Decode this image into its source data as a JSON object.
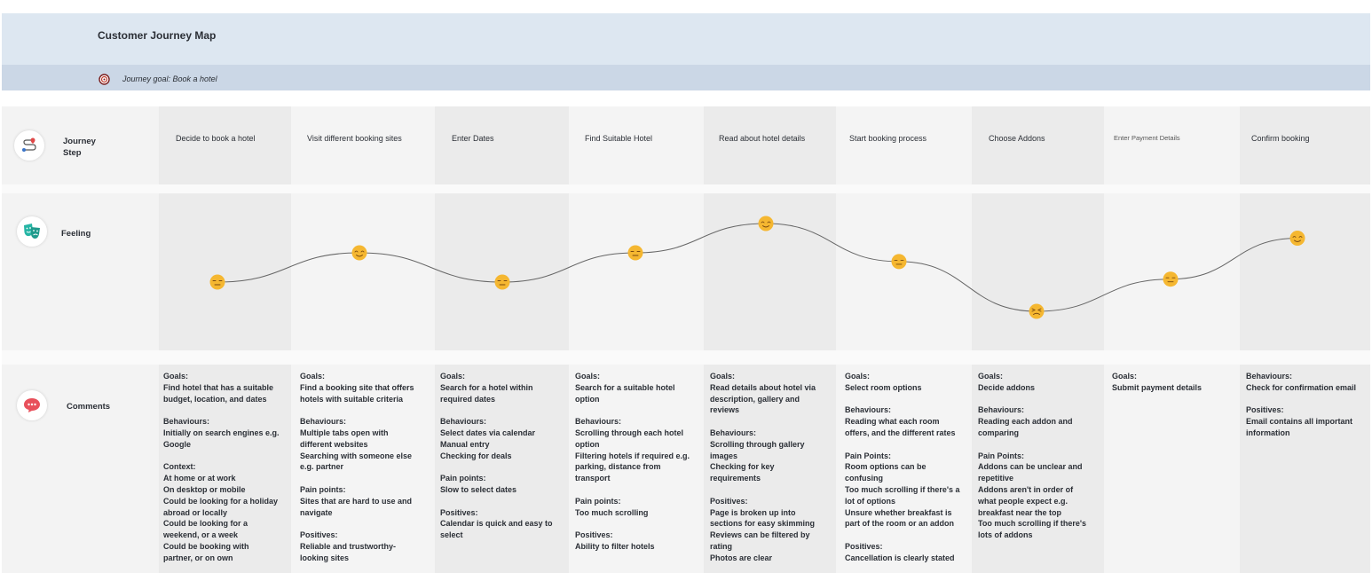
{
  "header": {
    "title": "Customer Journey Map",
    "goal": "Journey goal: Book a hotel"
  },
  "rows": {
    "journey_step": "Journey\nStep",
    "feeling": "Feeling",
    "comments": "Comments"
  },
  "icons": {
    "goal": "target-icon",
    "journey": "route-icon",
    "feeling": "theatre-masks-icon",
    "comments": "speech-bubble-icon"
  },
  "steps": [
    {
      "label": "Decide to book a hotel",
      "feeling": 2,
      "emoji": "neutral"
    },
    {
      "label": "Visit different booking sites",
      "feeling": 3,
      "emoji": "happy"
    },
    {
      "label": "Enter Dates",
      "feeling": 2,
      "emoji": "neutral"
    },
    {
      "label": "Find Suitable Hotel",
      "feeling": 3,
      "emoji": "neutral"
    },
    {
      "label": "Read about hotel details",
      "feeling": 4,
      "emoji": "happy"
    },
    {
      "label": "Start booking process",
      "feeling": 2.7,
      "emoji": "neutral"
    },
    {
      "label": "Choose Addons",
      "feeling": 1,
      "emoji": "frustrated"
    },
    {
      "label": "Enter Payment Details",
      "feeling": 2.1,
      "emoji": "neutral"
    },
    {
      "label": "Confirm booking",
      "feeling": 3.5,
      "emoji": "happy"
    }
  ],
  "comments": [
    "Goals:\nFind hotel that has a suitable\nbudget, location, and dates\n\nBehaviours:\nInitially on search engines e.g.\nGoogle\n\nContext:\nAt home or at work\nOn desktop or mobile\nCould be looking for a holiday\nabroad or locally\nCould be looking for a\nweekend, or a week\nCould be booking with\npartner, or on own",
    "Goals:\nFind a booking site that offers\nhotels with suitable criteria\n\nBehaviours:\nMultiple tabs open with\ndifferent websites\nSearching with someone else\ne.g. partner\n\nPain points:\nSites that are hard to use and\nnavigate\n\nPositives:\nReliable and trustworthy-\nlooking sites",
    "Goals:\nSearch for a hotel within\nrequired dates\n\nBehaviours:\nSelect dates via calendar\nManual entry\nChecking for deals\n\nPain points:\nSlow to select dates\n\nPositives:\nCalendar is quick and easy to\nselect",
    "Goals:\nSearch for a suitable hotel\noption\n\nBehaviours:\nScrolling through each hotel\noption\nFiltering hotels if required e.g.\nparking, distance from\ntransport\n\nPain points:\nToo much scrolling\n\nPositives:\nAbility to filter hotels",
    "Goals:\nRead details about hotel via\ndescription, gallery and\nreviews\n\nBehaviours:\nScrolling through gallery\nimages\nChecking for key\nrequirements\n\nPositives:\nPage is broken up into\nsections for easy skimming\nReviews can be filtered by\nrating\nPhotos are clear",
    "Goals:\nSelect room options\n\nBehaviours:\nReading what each room\noffers, and the different rates\n\nPain Points:\nRoom options can be\nconfusing\nToo much scrolling if there's a\nlot of options\nUnsure whether breakfast is\npart of the room or an addon\n\nPositives:\nCancellation is clearly stated",
    "Goals:\nDecide addons\n\nBehaviours:\nReading each addon and\ncomparing\n\nPain Points:\nAddons can be unclear and\nrepetitive\nAddons aren't in order of\nwhat people expect e.g.\nbreakfast near the top\nToo much scrolling if there's\nlots of addons",
    "Goals:\nSubmit payment details",
    "Behaviours:\nCheck for confirmation email\n\nPositives:\nEmail contains all important\ninformation"
  ],
  "colors": {
    "emoji": "#f5b731",
    "curve": "#666666",
    "target": "#c0392b",
    "masks": "#26b5a5",
    "bubble": "#e8505b"
  }
}
